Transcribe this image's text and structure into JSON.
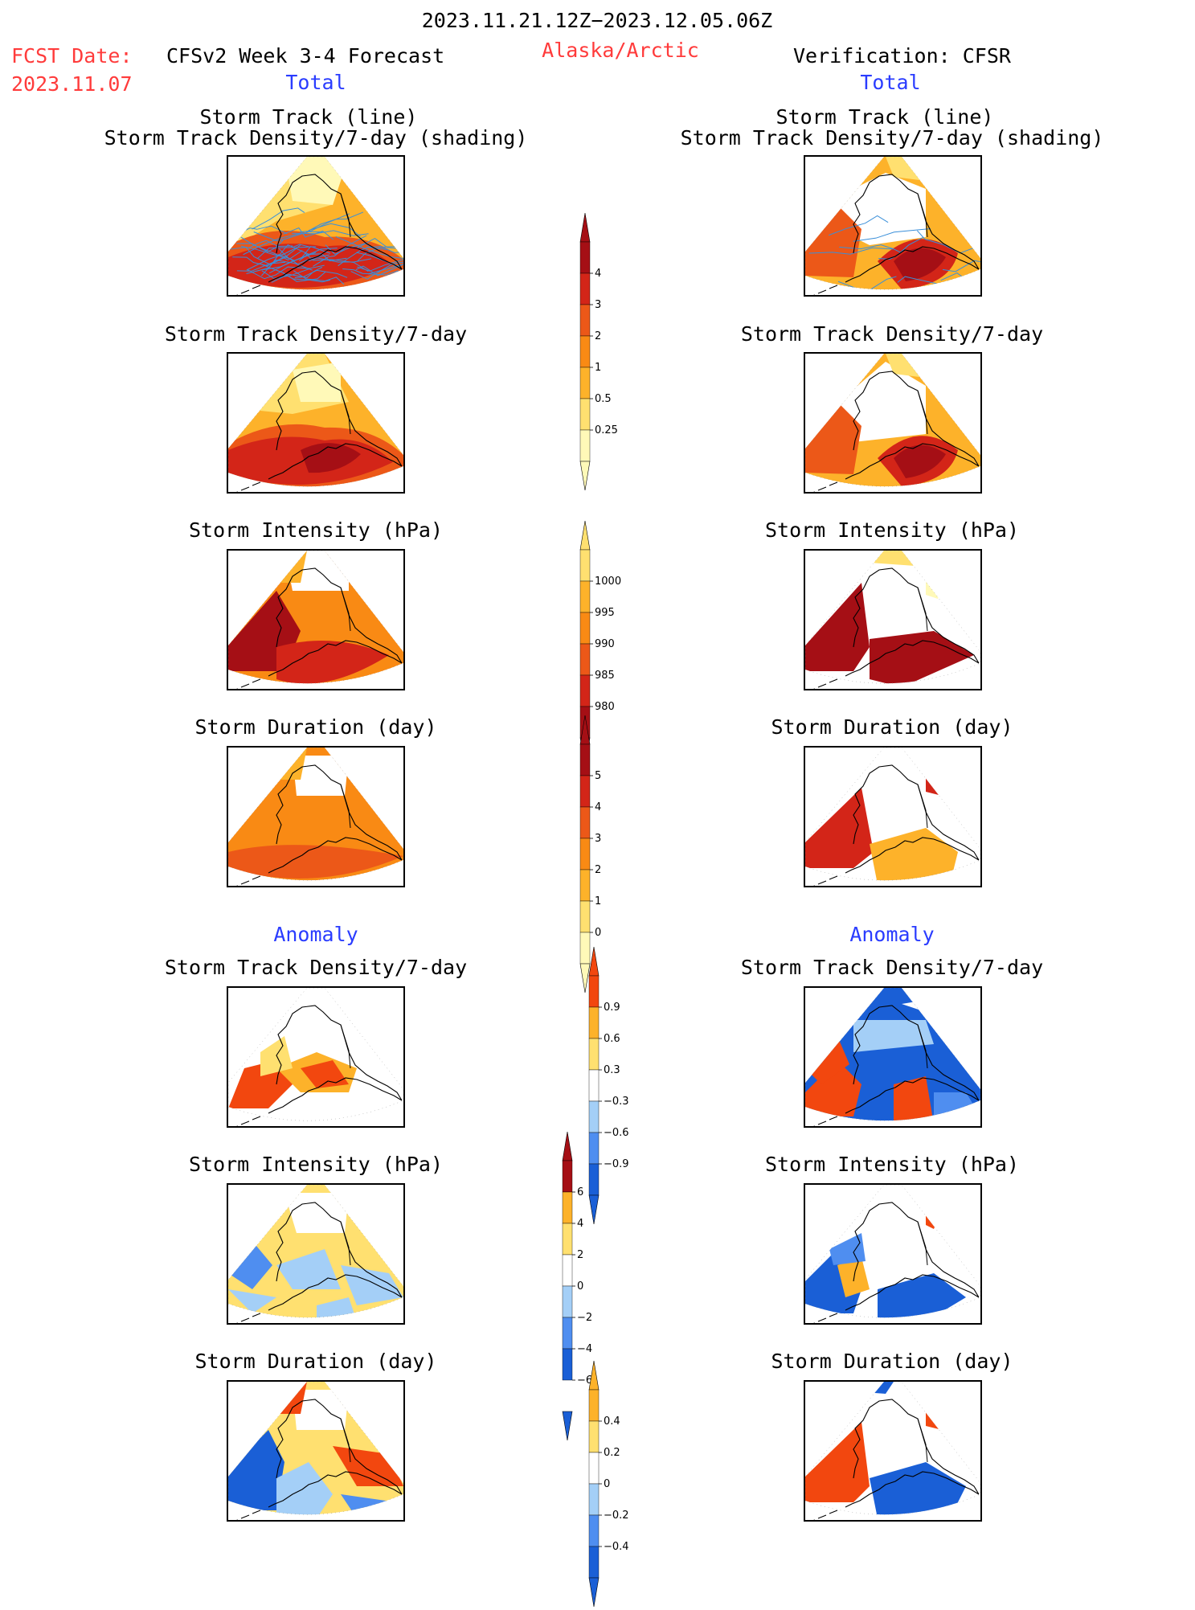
{
  "header": {
    "date_range": "2023.11.21.12Z−2023.12.05.06Z",
    "fcst_label": "FCST Date:",
    "fcst_date": "2023.11.07",
    "model_title": "CFSv2 Week 3-4 Forecast",
    "region": "Alaska/Arctic",
    "verification": "Verification: CFSR"
  },
  "sections": {
    "total_left": "Total",
    "total_right": "Total",
    "anomaly_left": "Anomaly",
    "anomaly_right": "Anomaly"
  },
  "panel_titles": {
    "track_line": "Storm Track (line)",
    "track_shading": "Storm Track Density/7-day (shading)",
    "density": "Storm Track Density/7-day",
    "intensity": "Storm Intensity (hPa)",
    "duration": "Storm Duration (day)"
  },
  "colors": {
    "warm": [
      "#fff9b8",
      "#ffe070",
      "#fdb22a",
      "#f98a14",
      "#ec5818",
      "#d32518",
      "#a50f15"
    ],
    "anom": [
      "#1a5fd6",
      "#4f8ef0",
      "#a4cff7",
      "#ffffff",
      "#ffe070",
      "#fdb22a",
      "#f2470f"
    ],
    "track_line": "#3a8fd9"
  },
  "chart_data": [
    {
      "type": "heatmap",
      "name": "density_colorbar",
      "levels": [
        "0.25",
        "0.5",
        "1",
        "2",
        "3",
        "4"
      ],
      "unit": "storms/7-day"
    },
    {
      "type": "heatmap",
      "name": "intensity_colorbar",
      "levels": [
        "1000",
        "995",
        "990",
        "985",
        "980"
      ],
      "unit": "hPa"
    },
    {
      "type": "heatmap",
      "name": "duration_colorbar",
      "levels": [
        "5",
        "4",
        "3",
        "2",
        "1",
        "0"
      ],
      "unit": "day"
    },
    {
      "type": "heatmap",
      "name": "density_anomaly_colorbar",
      "levels": [
        "0.9",
        "0.6",
        "0.3",
        "−0.3",
        "−0.6",
        "−0.9"
      ]
    },
    {
      "type": "heatmap",
      "name": "intensity_anomaly_colorbar",
      "levels": [
        "6",
        "4",
        "2",
        "0",
        "−2",
        "−4",
        "−6"
      ]
    },
    {
      "type": "heatmap",
      "name": "duration_anomaly_colorbar",
      "levels": [
        "0.4",
        "0.2",
        "0",
        "−0.2",
        "−0.4"
      ]
    }
  ]
}
